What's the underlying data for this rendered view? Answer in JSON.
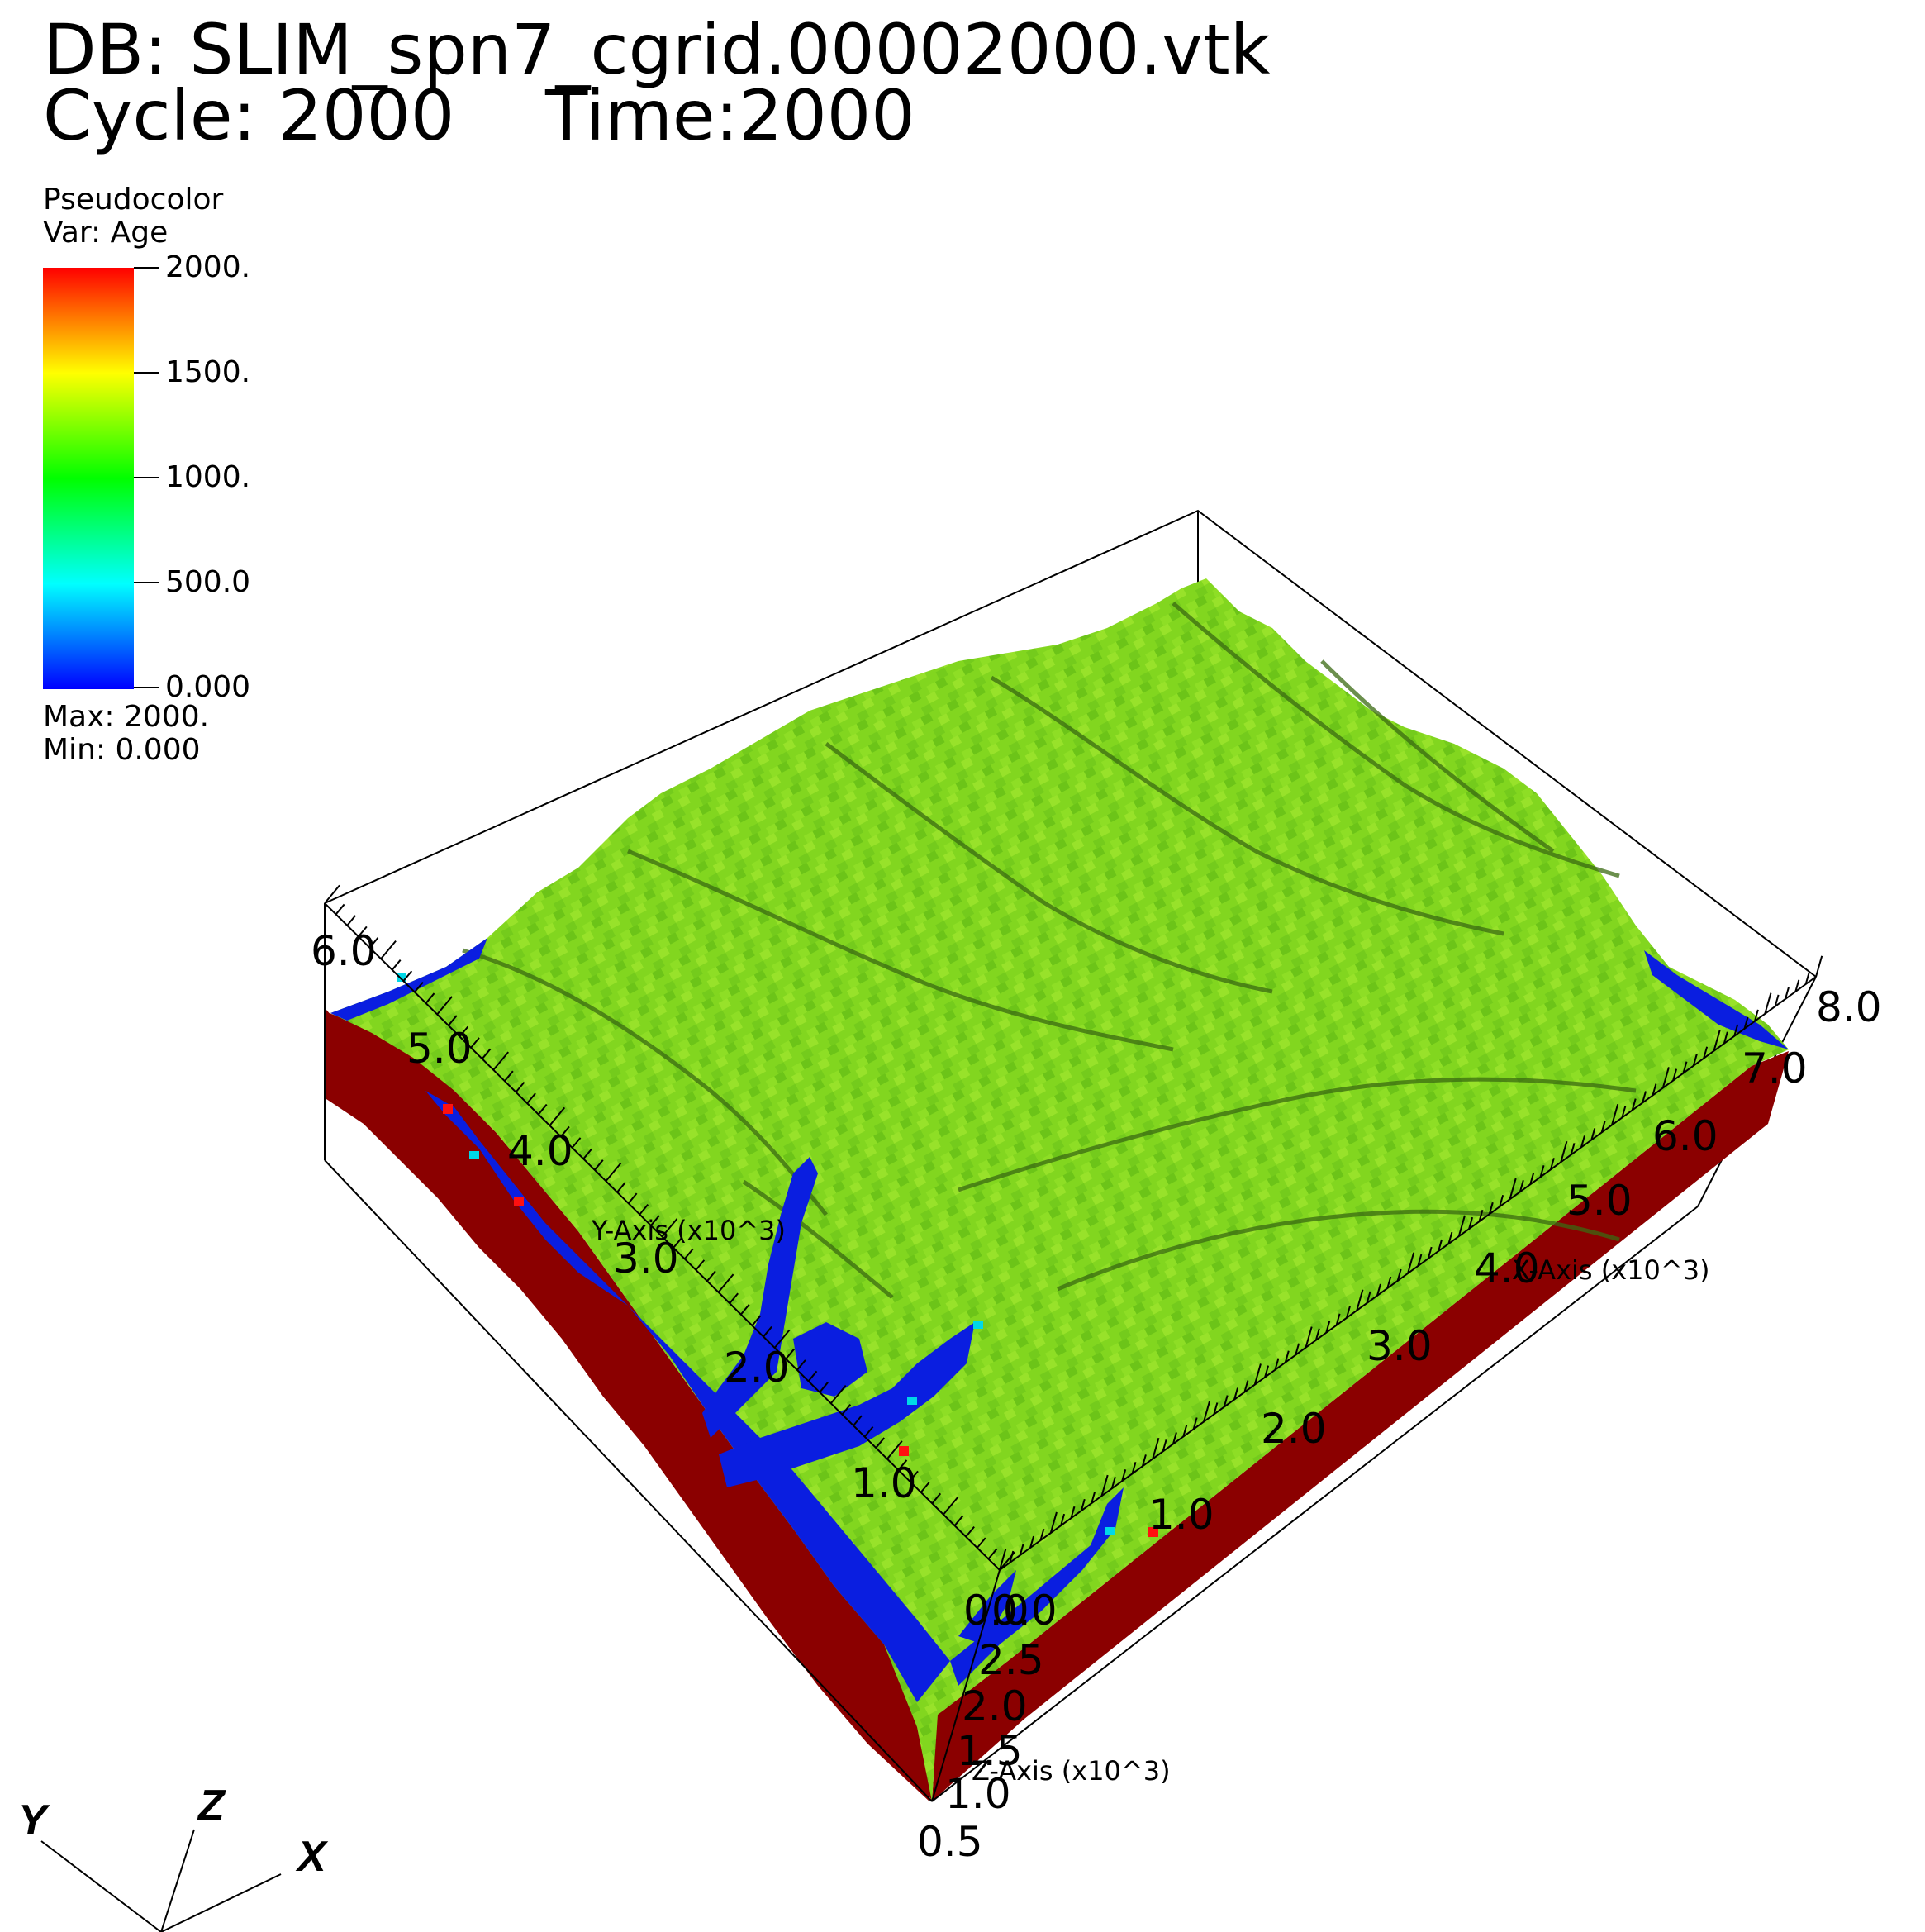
{
  "header": {
    "db_line": "DB: SLIM_spn7_cgrid.00002000.vtk",
    "cycle_line": "Cycle: 2000",
    "time_line": "Time:2000"
  },
  "legend": {
    "plot_type": "Pseudocolor",
    "variable": "Var: Age",
    "ticks": [
      "2000.",
      "1500.",
      "1000.",
      "500.0",
      "0.000"
    ],
    "max_label": "Max:  2000.",
    "min_label": "Min:  0.000",
    "colormap": [
      "#0000ff",
      "#00ffff",
      "#00ff00",
      "#ffff00",
      "#ff0000"
    ]
  },
  "axes": {
    "x_title": "X-Axis (x10^3)",
    "y_title": "Y-Axis (x10^3)",
    "z_title": "Z-Axis (x10^3)",
    "x_ticks": [
      "0.0",
      "1.0",
      "2.0",
      "3.0",
      "4.0",
      "5.0",
      "6.0",
      "7.0",
      "8.0"
    ],
    "y_ticks": [
      "0.0",
      "1.0",
      "2.0",
      "3.0",
      "4.0",
      "5.0",
      "6.0"
    ],
    "z_ticks": [
      "0.5",
      "1.0",
      "1.5",
      "2.0",
      "2.5",
      "0.0"
    ]
  },
  "triad": {
    "x": "X",
    "y": "Y",
    "z": "Z"
  },
  "colors": {
    "terrain_green": "#7fd421",
    "terrain_dark": "#3a6a12",
    "side_wall": "#8b0000",
    "low_age_blue": "#0a1ee0"
  }
}
